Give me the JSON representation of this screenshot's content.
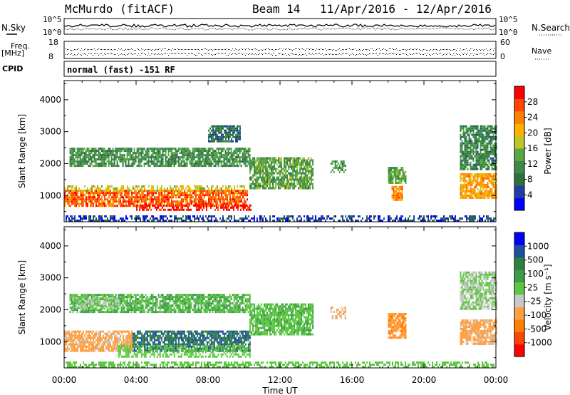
{
  "header": {
    "station": "McMurdo (fitACF)",
    "beam": "Beam 14",
    "date_range": "11/Apr/2016 - 12/Apr/2016"
  },
  "status": {
    "nsky_label": "N.Sky",
    "nsky_top_tick": "10^5",
    "nsky_bottom_tick": "10^0",
    "nsearch_label": "N.Search",
    "nsearch_top_tick": "10^5",
    "nsearch_bottom_tick": "10^0",
    "freq_label": "Freq.",
    "freq_unit": "[MHz]",
    "freq_top_tick": "18",
    "freq_bottom_tick": "8",
    "nave_label": "Nave",
    "nave_top_tick": "60",
    "nave_bottom_tick": "0",
    "cpid_label": "CPID",
    "cpid_text": "normal (fast) -151 RF"
  },
  "colors": {
    "power_scale": [
      "#0000ff",
      "#1f3ea6",
      "#2f6f3f",
      "#3b8c4a",
      "#57a83f",
      "#bcc62a",
      "#ffb000",
      "#ff8000",
      "#ff4500",
      "#ff0000"
    ],
    "velocity_scale": [
      "#ff0000",
      "#ff4500",
      "#ff8000",
      "#ffa040",
      "#c8c8c8",
      "#5ec742",
      "#3c9c47",
      "#2f7f3f",
      "#1f4fa0",
      "#0000ff"
    ]
  },
  "chart_data": [
    {
      "type": "heatmap",
      "panel": "power",
      "xlabel": "",
      "ylabel": "Slant Range [km]",
      "x_ticks": [
        "00:00",
        "04:00",
        "08:00",
        "12:00",
        "16:00",
        "20:00",
        "00:00"
      ],
      "xlim_hours": [
        0,
        24
      ],
      "y_ticks": [
        1000,
        2000,
        3000,
        4000
      ],
      "ylim": [
        180,
        4600
      ],
      "colorbar": {
        "label": "Power [dB]",
        "ticks": [
          4,
          8,
          12,
          16,
          20,
          24,
          28
        ],
        "range": [
          0,
          32
        ]
      },
      "regions": [
        {
          "t_start": 0.0,
          "t_end": 10.2,
          "r_low": 700,
          "r_high": 1180,
          "value": 26
        },
        {
          "t_start": 4.0,
          "t_end": 10.4,
          "r_low": 560,
          "r_high": 720,
          "value": 30
        },
        {
          "t_start": 0.0,
          "t_end": 10.0,
          "r_low": 1180,
          "r_high": 1320,
          "value": 18
        },
        {
          "t_start": 0.3,
          "t_end": 10.3,
          "r_low": 1900,
          "r_high": 2500,
          "value": 11
        },
        {
          "t_start": 8.0,
          "t_end": 9.8,
          "r_low": 2700,
          "r_high": 3200,
          "value": 8
        },
        {
          "t_start": 10.3,
          "t_end": 13.8,
          "r_low": 1200,
          "r_high": 2200,
          "value": 13
        },
        {
          "t_start": 14.8,
          "t_end": 15.6,
          "r_low": 1750,
          "r_high": 2100,
          "value": 12
        },
        {
          "t_start": 18.0,
          "t_end": 19.0,
          "r_low": 1400,
          "r_high": 1900,
          "value": 14
        },
        {
          "t_start": 18.2,
          "t_end": 18.8,
          "r_low": 850,
          "r_high": 1300,
          "value": 24
        },
        {
          "t_start": 22.0,
          "t_end": 24.0,
          "r_low": 900,
          "r_high": 1700,
          "value": 22
        },
        {
          "t_start": 22.0,
          "t_end": 24.0,
          "r_low": 1800,
          "r_high": 3200,
          "value": 10
        },
        {
          "t_start": 0.0,
          "t_end": 24.0,
          "r_low": 180,
          "r_high": 380,
          "value": 5
        }
      ]
    },
    {
      "type": "heatmap",
      "panel": "velocity",
      "xlabel": "Time UT",
      "ylabel": "Slant Range [km]",
      "x_ticks": [
        "00:00",
        "04:00",
        "08:00",
        "12:00",
        "16:00",
        "20:00",
        "00:00"
      ],
      "xlim_hours": [
        0,
        24
      ],
      "y_ticks": [
        1000,
        2000,
        3000,
        4000
      ],
      "ylim": [
        180,
        4600
      ],
      "colorbar": {
        "label": "Velocity [m s⁻¹]",
        "ticks": [
          "-1000",
          "-500",
          "-100",
          "-25",
          "25",
          "100",
          "500",
          "1000"
        ],
        "range": [
          -1200,
          1200
        ]
      },
      "regions": [
        {
          "t_start": 0.0,
          "t_end": 3.8,
          "r_low": 700,
          "r_high": 1350,
          "value": -300
        },
        {
          "t_start": 3.8,
          "t_end": 10.3,
          "r_low": 700,
          "r_high": 1350,
          "value": 700
        },
        {
          "t_start": 3.0,
          "t_end": 10.3,
          "r_low": 500,
          "r_high": 900,
          "value": 60
        },
        {
          "t_start": 0.3,
          "t_end": 10.3,
          "r_low": 1900,
          "r_high": 2500,
          "value": 250
        },
        {
          "t_start": 0.3,
          "t_end": 3.0,
          "r_low": 2000,
          "r_high": 2400,
          "value": 0
        },
        {
          "t_start": 10.3,
          "t_end": 13.8,
          "r_low": 1200,
          "r_high": 2200,
          "value": 200
        },
        {
          "t_start": 14.8,
          "t_end": 15.6,
          "r_low": 1750,
          "r_high": 2100,
          "value": -300
        },
        {
          "t_start": 18.0,
          "t_end": 19.0,
          "r_low": 1100,
          "r_high": 1900,
          "value": -400
        },
        {
          "t_start": 22.0,
          "t_end": 24.0,
          "r_low": 900,
          "r_high": 1700,
          "value": -300
        },
        {
          "t_start": 22.0,
          "t_end": 24.0,
          "r_low": 2000,
          "r_high": 3200,
          "value": 0
        },
        {
          "t_start": 0.0,
          "t_end": 24.0,
          "r_low": 180,
          "r_high": 380,
          "value": 150
        }
      ]
    }
  ]
}
